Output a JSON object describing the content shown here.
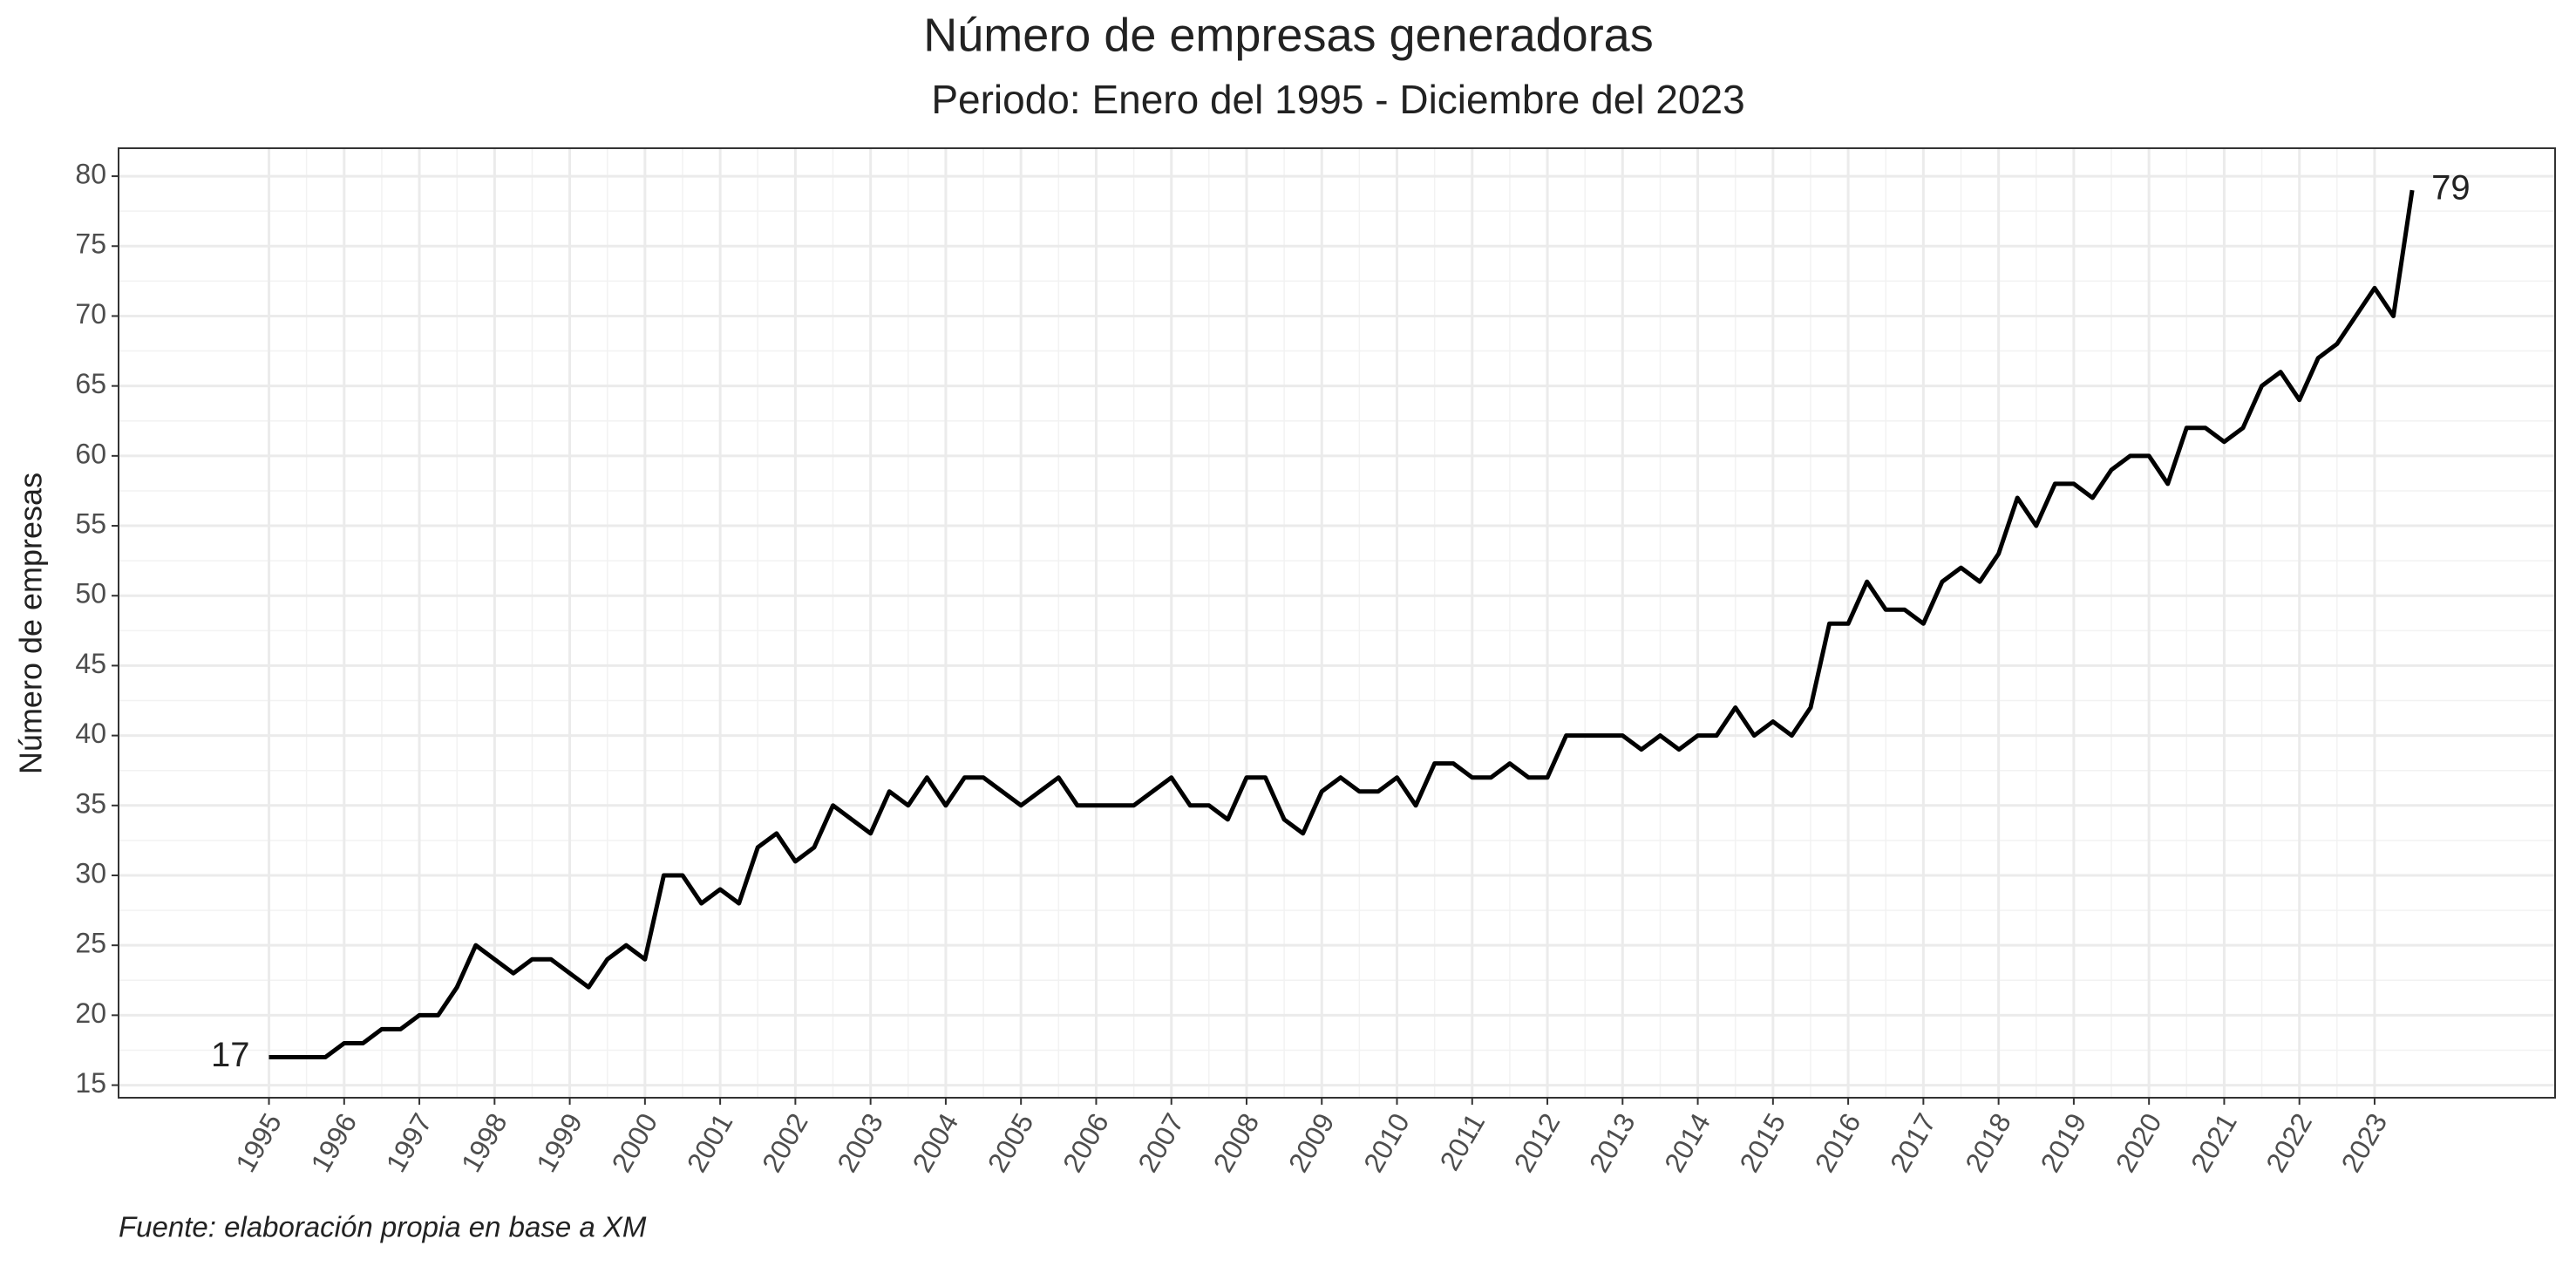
{
  "chart_data": {
    "type": "line",
    "title": "Número de empresas generadoras",
    "subtitle": "Periodo: Enero del 1995 - Diciembre del 2023",
    "y_label": "Número de empresas",
    "caption": "Fuente: elaboración propia en base a XM",
    "color": "#000000",
    "grid": true,
    "x": [
      1995,
      1995.25,
      1995.5,
      1995.75,
      1996,
      1996.25,
      1996.5,
      1996.75,
      1997,
      1997.25,
      1997.5,
      1997.75,
      1998,
      1998.25,
      1998.5,
      1998.75,
      1999,
      1999.25,
      1999.5,
      1999.75,
      2000,
      2000.25,
      2000.5,
      2000.75,
      2001,
      2001.25,
      2001.5,
      2001.75,
      2002,
      2002.25,
      2002.5,
      2002.75,
      2003,
      2003.25,
      2003.5,
      2003.75,
      2004,
      2004.25,
      2004.5,
      2004.75,
      2005,
      2005.25,
      2005.5,
      2005.75,
      2006,
      2006.25,
      2006.5,
      2006.75,
      2007,
      2007.25,
      2007.5,
      2007.75,
      2008,
      2008.25,
      2008.5,
      2008.75,
      2009,
      2009.25,
      2009.5,
      2009.75,
      2010,
      2010.25,
      2010.5,
      2010.75,
      2011,
      2011.25,
      2011.5,
      2011.75,
      2012,
      2012.25,
      2012.5,
      2012.75,
      2013,
      2013.25,
      2013.5,
      2013.75,
      2014,
      2014.25,
      2014.5,
      2014.75,
      2015,
      2015.25,
      2015.5,
      2015.75,
      2016,
      2016.25,
      2016.5,
      2016.75,
      2017,
      2017.25,
      2017.5,
      2017.75,
      2018,
      2018.25,
      2018.5,
      2018.75,
      2019,
      2019.25,
      2019.5,
      2019.75,
      2020,
      2020.25,
      2020.5,
      2020.75,
      2021,
      2021.25,
      2021.5,
      2021.75,
      2022,
      2022.25,
      2022.5,
      2022.75,
      2023,
      2023.25,
      2023.5
    ],
    "values": [
      17,
      17,
      17,
      17,
      18,
      18,
      19,
      19,
      20,
      20,
      22,
      25,
      24,
      23,
      24,
      24,
      23,
      22,
      24,
      25,
      24,
      30,
      30,
      28,
      29,
      28,
      32,
      33,
      31,
      32,
      35,
      34,
      33,
      36,
      35,
      37,
      35,
      37,
      37,
      36,
      35,
      36,
      37,
      35,
      35,
      35,
      35,
      36,
      37,
      35,
      35,
      34,
      37,
      37,
      34,
      33,
      36,
      37,
      36,
      36,
      37,
      35,
      38,
      38,
      37,
      37,
      38,
      37,
      37,
      40,
      40,
      40,
      40,
      39,
      40,
      39,
      40,
      40,
      42,
      40,
      41,
      40,
      42,
      48,
      48,
      51,
      49,
      49,
      48,
      51,
      52,
      51,
      53,
      57,
      55,
      58,
      58,
      57,
      59,
      60,
      60,
      58,
      62,
      62,
      61,
      62,
      65,
      66,
      64,
      67,
      68,
      70,
      72,
      70,
      79
    ],
    "annotations": [
      17,
      79
    ],
    "xlim": [
      1993.0,
      2025.4
    ],
    "ylim": [
      14.1,
      82
    ],
    "xticks": [
      1995,
      1996,
      1997,
      1998,
      1999,
      2000,
      2001,
      2002,
      2003,
      2004,
      2005,
      2006,
      2007,
      2008,
      2009,
      2010,
      2011,
      2012,
      2013,
      2014,
      2015,
      2016,
      2017,
      2018,
      2019,
      2020,
      2021,
      2022,
      2023
    ],
    "yticks": [
      15,
      20,
      25,
      30,
      35,
      40,
      45,
      50,
      55,
      60,
      65,
      70,
      75,
      80
    ]
  }
}
